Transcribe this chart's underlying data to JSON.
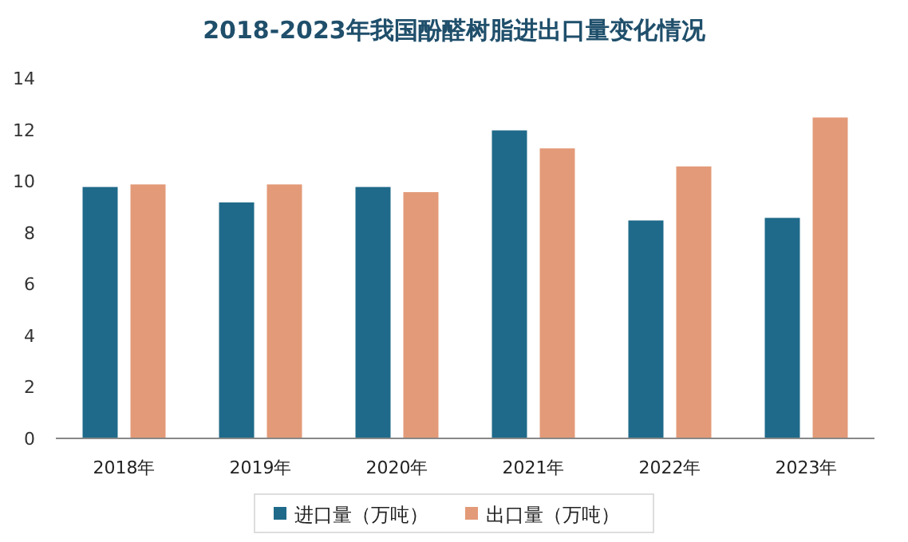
{
  "chart_data": {
    "type": "bar",
    "title": "2018-2023年我国酚醛树脂进出口量变化情况",
    "categories": [
      "2018年",
      "2019年",
      "2020年",
      "2021年",
      "2022年",
      "2023年"
    ],
    "series": [
      {
        "name": "进口量（万吨）",
        "color": "#1f6a8a",
        "values": [
          9.8,
          9.2,
          9.8,
          12.0,
          8.5,
          8.6
        ]
      },
      {
        "name": "出口量（万吨）",
        "color": "#e39a78",
        "values": [
          9.9,
          9.9,
          9.6,
          11.3,
          10.6,
          12.5
        ]
      }
    ],
    "ylim": [
      0,
      14
    ],
    "yticks": [
      0,
      2,
      4,
      6,
      8,
      10,
      12,
      14
    ],
    "grid": false,
    "legend": "bottom"
  }
}
